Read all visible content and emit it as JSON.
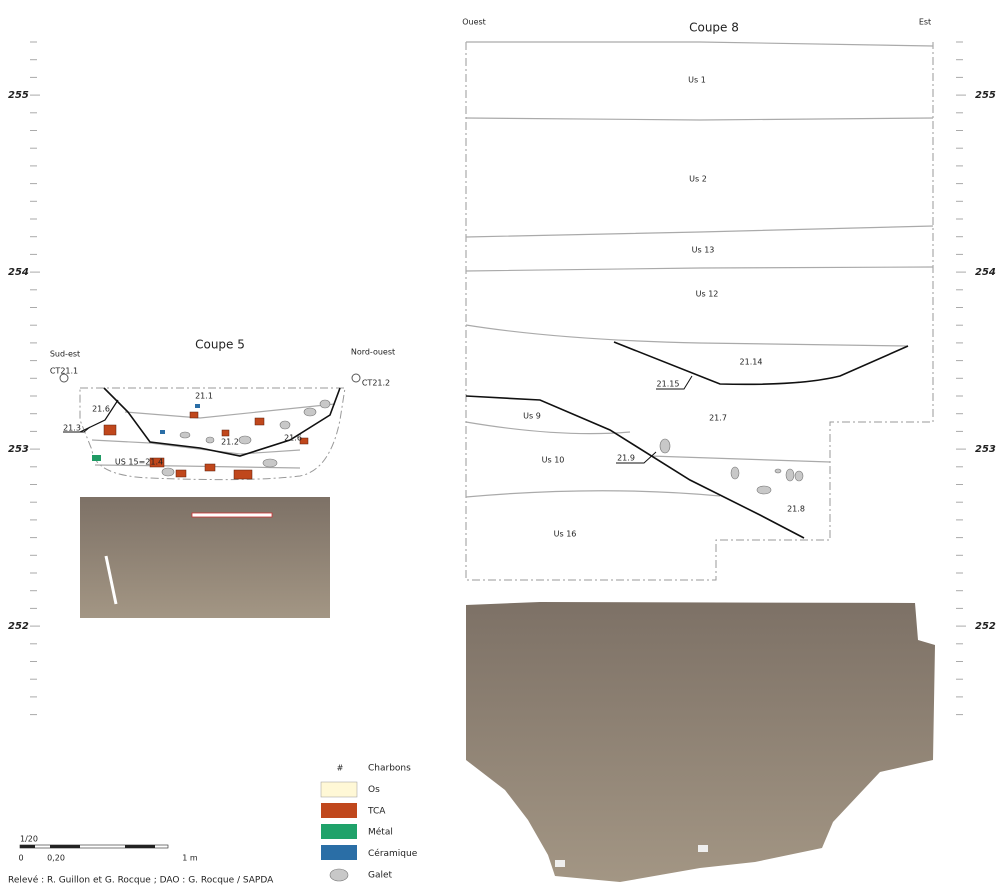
{
  "scales": {
    "left": [
      255,
      254,
      253,
      252
    ],
    "right": [
      255,
      254,
      253,
      252
    ]
  },
  "coupe5": {
    "title": "Coupe 5",
    "left_label": "Sud-est",
    "right_label": "Nord-ouest",
    "datum_left": "CT21.1",
    "datum_right": "CT21.2",
    "labels": [
      "21.1",
      "21.6",
      "21.3",
      "21.2",
      "21.6",
      "US 15=21.4"
    ]
  },
  "coupe8": {
    "title": "Coupe 8",
    "left_label": "Ouest",
    "right_label": "Est",
    "labels": [
      "Us 1",
      "Us 2",
      "Us 13",
      "Us 12",
      "21.14",
      "21.15",
      "21.7",
      "Us 9",
      "Us 10",
      "21.9",
      "21.8",
      "Us 16"
    ]
  },
  "legend": {
    "symbol": "#",
    "items": [
      "Charbons",
      "Os",
      "TCA",
      "Métal",
      "Céramique",
      "Galet"
    ]
  },
  "scale_bar": {
    "ratio": "1/20",
    "labels": [
      "0",
      "0,20",
      "1 m"
    ]
  },
  "credits": "Relevé : R. Guillon et G. Rocque ; DAO : G. Rocque / SAPDA"
}
